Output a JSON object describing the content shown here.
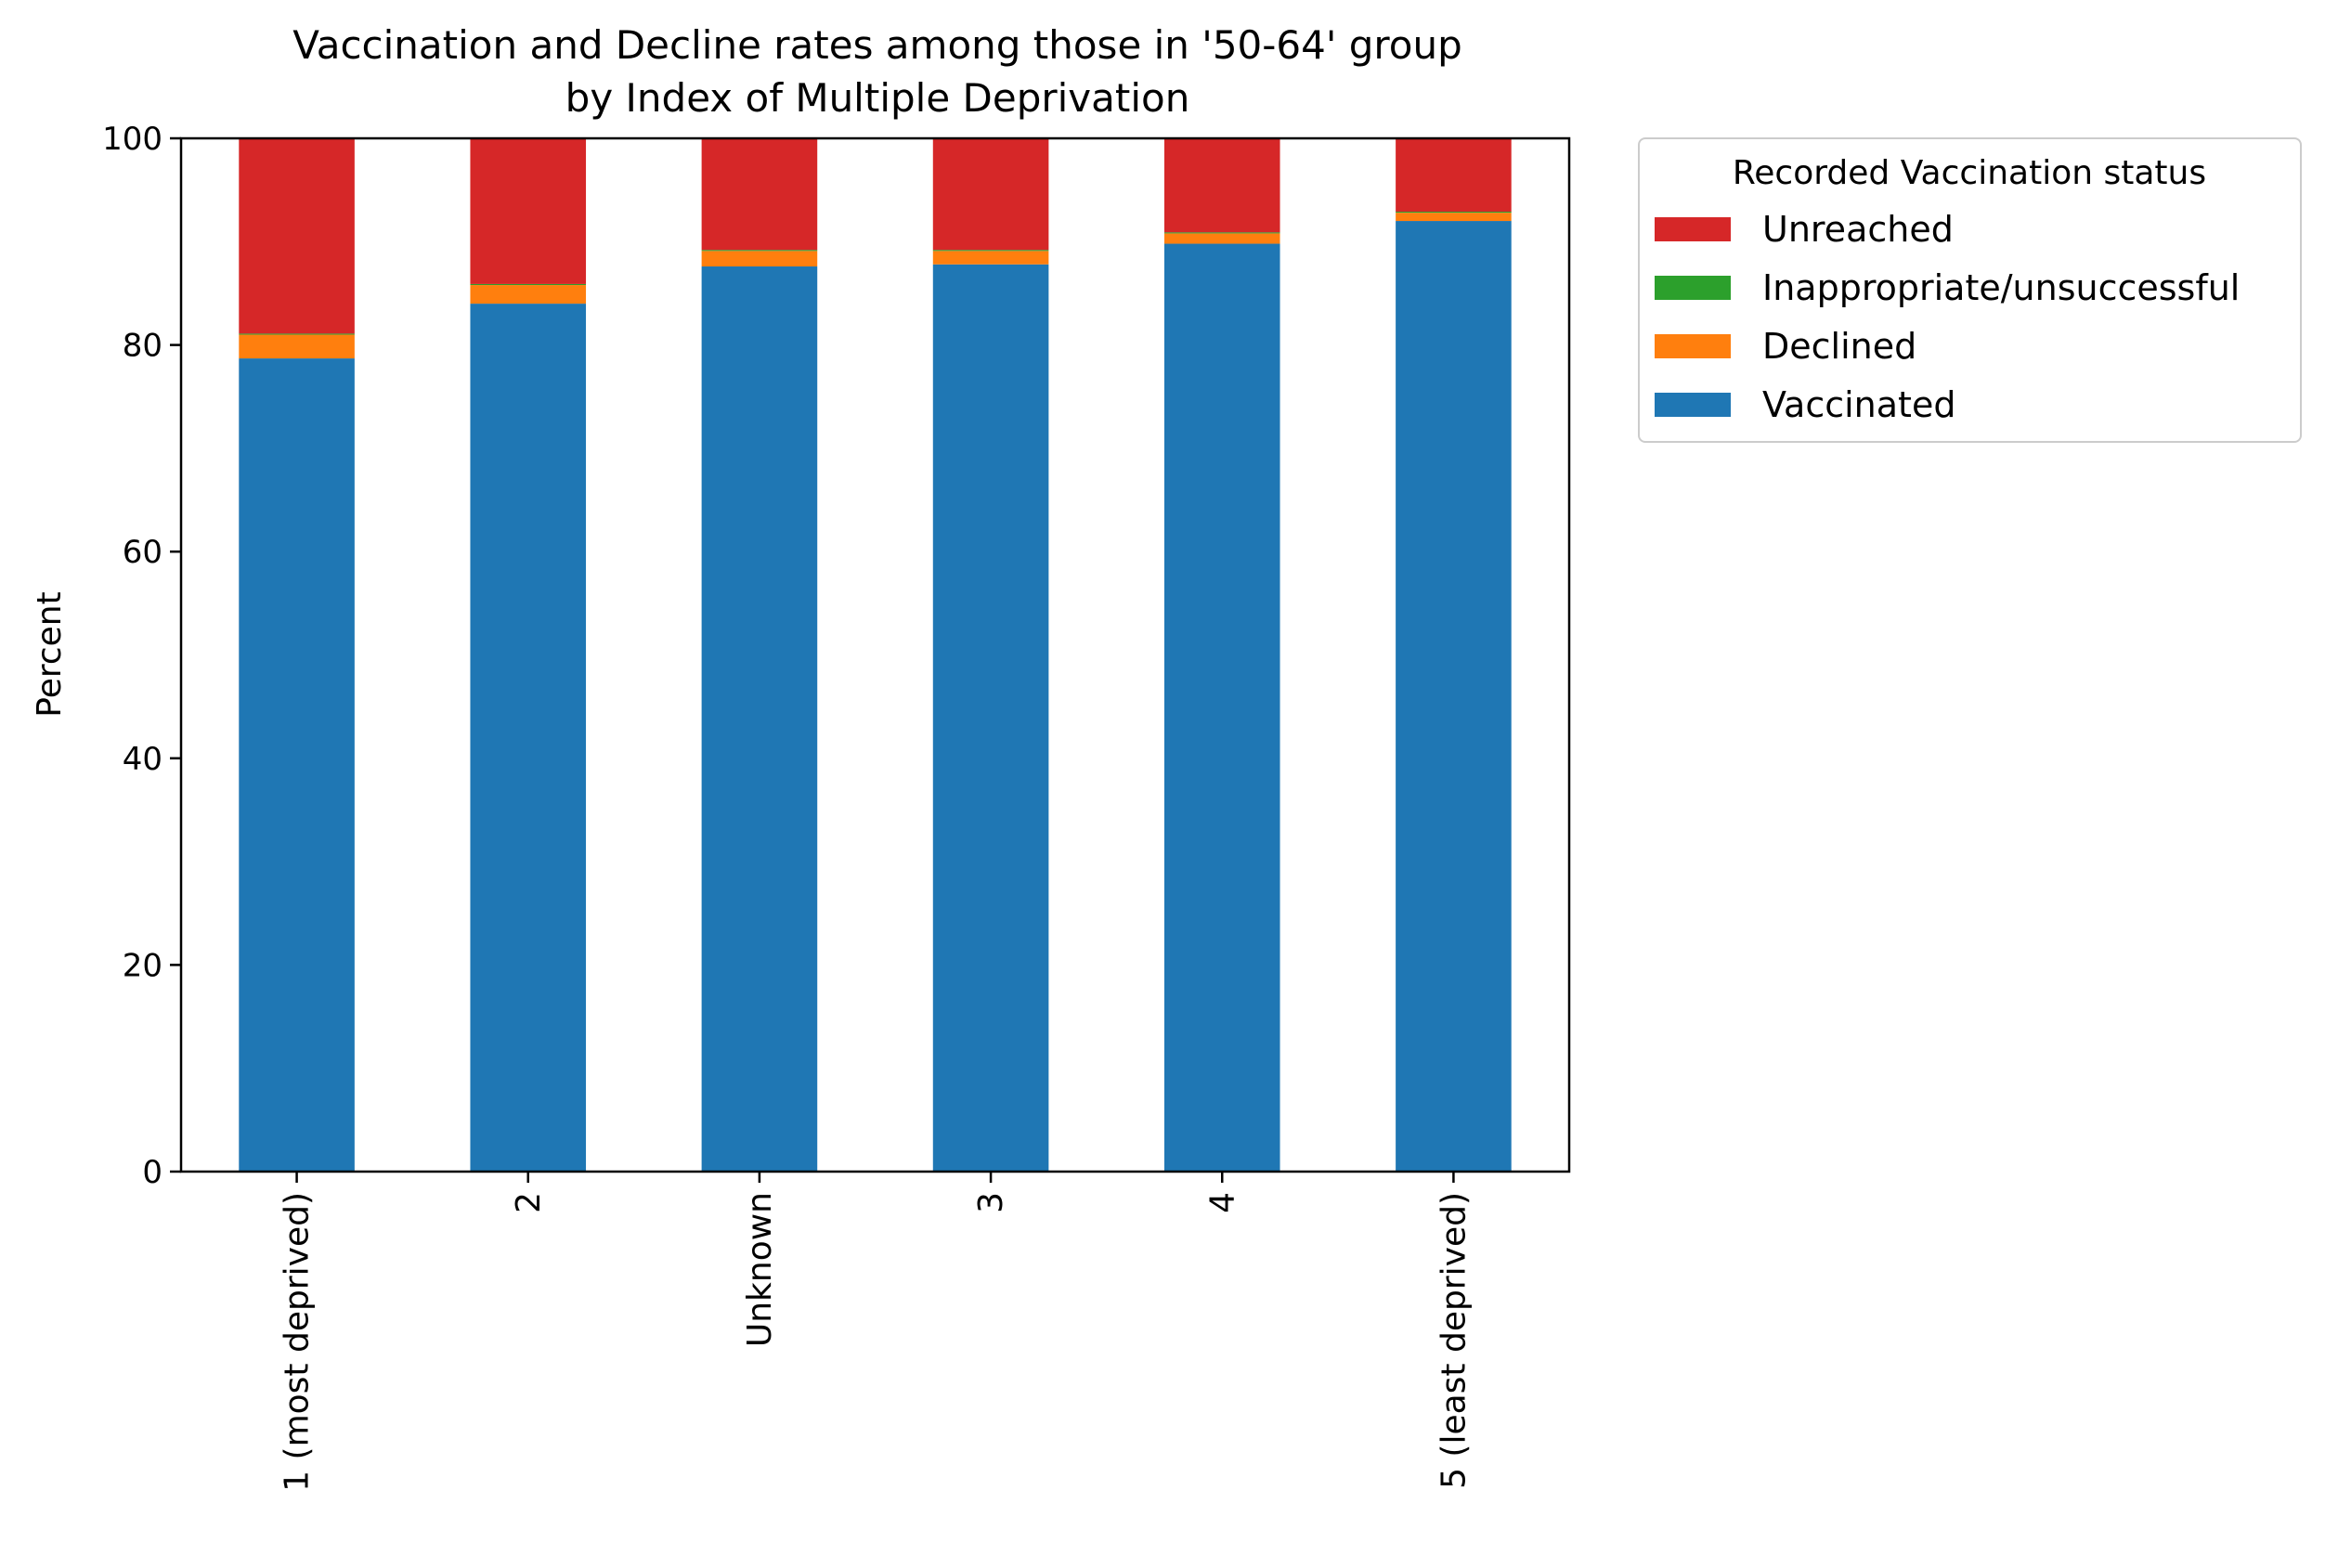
{
  "chart_data": {
    "type": "bar",
    "stacked": true,
    "title": "Vaccination and Decline rates among those in '50-64' group\nby Index of Multiple Deprivation",
    "title_lines": [
      "Vaccination and Decline rates among those in '50-64' group",
      "by Index of Multiple Deprivation"
    ],
    "xlabel": "",
    "ylabel": "Percent",
    "ylim": [
      0,
      100
    ],
    "yticks": [
      0,
      20,
      40,
      60,
      80,
      100
    ],
    "categories": [
      "1 (most deprived)",
      "2",
      "Unknown",
      "3",
      "4",
      "5 (least deprived)"
    ],
    "legend": {
      "title": "Recorded Vaccination status",
      "placement": "outside-top-right",
      "order": [
        "Unreached",
        "Inappropriate/unsuccessful",
        "Declined",
        "Vaccinated"
      ]
    },
    "series": [
      {
        "name": "Vaccinated",
        "color": "#1f77b4",
        "values": [
          78.7,
          84.0,
          87.6,
          87.8,
          89.8,
          92.0
        ]
      },
      {
        "name": "Declined",
        "color": "#ff7f0e",
        "values": [
          2.3,
          1.8,
          1.5,
          1.3,
          1.0,
          0.8
        ]
      },
      {
        "name": "Inappropriate/unsuccessful",
        "color": "#2ca02c",
        "values": [
          0.1,
          0.1,
          0.1,
          0.1,
          0.1,
          0.1
        ]
      },
      {
        "name": "Unreached",
        "color": "#d62728",
        "values": [
          18.9,
          14.1,
          10.8,
          10.8,
          9.1,
          7.1
        ]
      }
    ],
    "grid": false
  }
}
